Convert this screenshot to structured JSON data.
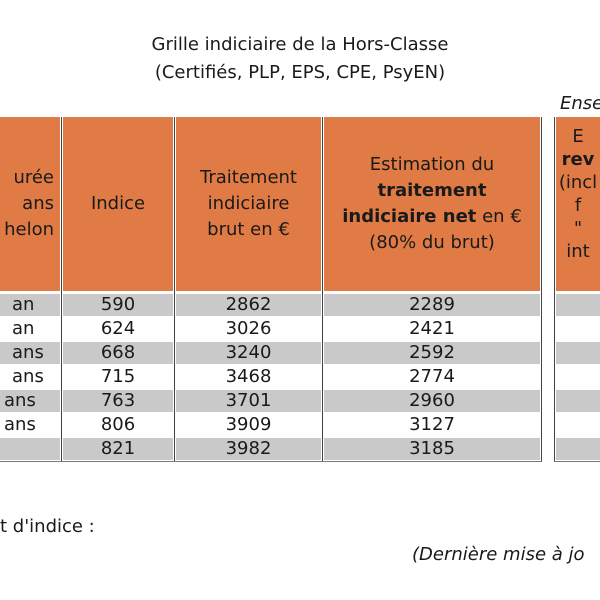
{
  "title": {
    "line1": "Grille indiciaire de la Hors-Classe",
    "line2": "(Certifiés, PLP, EPS, CPE, PsyEN)"
  },
  "right_header_label": "Ense",
  "headers": {
    "duree": [
      "urée",
      "ans",
      "helon"
    ],
    "indice": "Indice",
    "brut": [
      "Traitement",
      "indiciaire",
      "brut en €"
    ],
    "net": {
      "line1": "Estimation du",
      "line2_bold": "traitement",
      "line3_bold": "indiciaire net",
      "line3_rest": " en €",
      "line4": "(80% du brut)"
    },
    "right": [
      "E",
      "rev",
      "(incl",
      "f",
      "\"",
      "int"
    ]
  },
  "rows": [
    {
      "duree": "an",
      "indice": "590",
      "brut": "2862",
      "net": "2289"
    },
    {
      "duree": "an",
      "indice": "624",
      "brut": "3026",
      "net": "2421"
    },
    {
      "duree": "ans",
      "indice": "668",
      "brut": "3240",
      "net": "2592"
    },
    {
      "duree": "ans",
      "indice": "715",
      "brut": "3468",
      "net": "2774"
    },
    {
      "duree": "ans",
      "indice": "763",
      "brut": "3701",
      "net": "2960"
    },
    {
      "duree": "ans",
      "indice": "806",
      "brut": "3909",
      "net": "3127"
    },
    {
      "duree": "",
      "indice": "821",
      "brut": "3982",
      "net": "3185"
    }
  ],
  "footer": {
    "note": "t d'indice :",
    "update": "(Dernière mise à jo"
  },
  "colors": {
    "header_bg": "#e07b45",
    "stripe": "#c9c9c9"
  }
}
